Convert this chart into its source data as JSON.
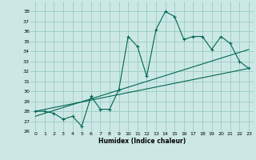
{
  "xlabel": "Humidex (Indice chaleur)",
  "background_color": "#cce8e4",
  "grid_color": "#99ccc4",
  "line_color": "#006655",
  "xlim": [
    -0.5,
    23.5
  ],
  "ylim": [
    26,
    39
  ],
  "xticks": [
    0,
    1,
    2,
    3,
    4,
    5,
    6,
    7,
    8,
    9,
    10,
    11,
    12,
    13,
    14,
    15,
    16,
    17,
    18,
    19,
    20,
    21,
    22,
    23
  ],
  "yticks": [
    26,
    27,
    28,
    29,
    30,
    31,
    32,
    33,
    34,
    35,
    36,
    37,
    38
  ],
  "main_series": [
    [
      0,
      28.0
    ],
    [
      1,
      28.0
    ],
    [
      2,
      27.8
    ],
    [
      3,
      27.2
    ],
    [
      4,
      27.5
    ],
    [
      5,
      26.5
    ],
    [
      6,
      29.5
    ],
    [
      7,
      28.2
    ],
    [
      8,
      28.2
    ],
    [
      9,
      30.2
    ],
    [
      10,
      35.5
    ],
    [
      11,
      34.5
    ],
    [
      12,
      31.5
    ],
    [
      13,
      36.2
    ],
    [
      14,
      38.0
    ],
    [
      15,
      37.5
    ],
    [
      16,
      35.2
    ],
    [
      17,
      35.5
    ],
    [
      18,
      35.5
    ],
    [
      19,
      34.2
    ],
    [
      20,
      35.5
    ],
    [
      21,
      34.8
    ],
    [
      22,
      33.0
    ],
    [
      23,
      32.3
    ]
  ],
  "trend_line1": [
    [
      0,
      28.0
    ],
    [
      23,
      32.3
    ]
  ],
  "trend_line2": [
    [
      0,
      27.5
    ],
    [
      23,
      34.2
    ]
  ]
}
